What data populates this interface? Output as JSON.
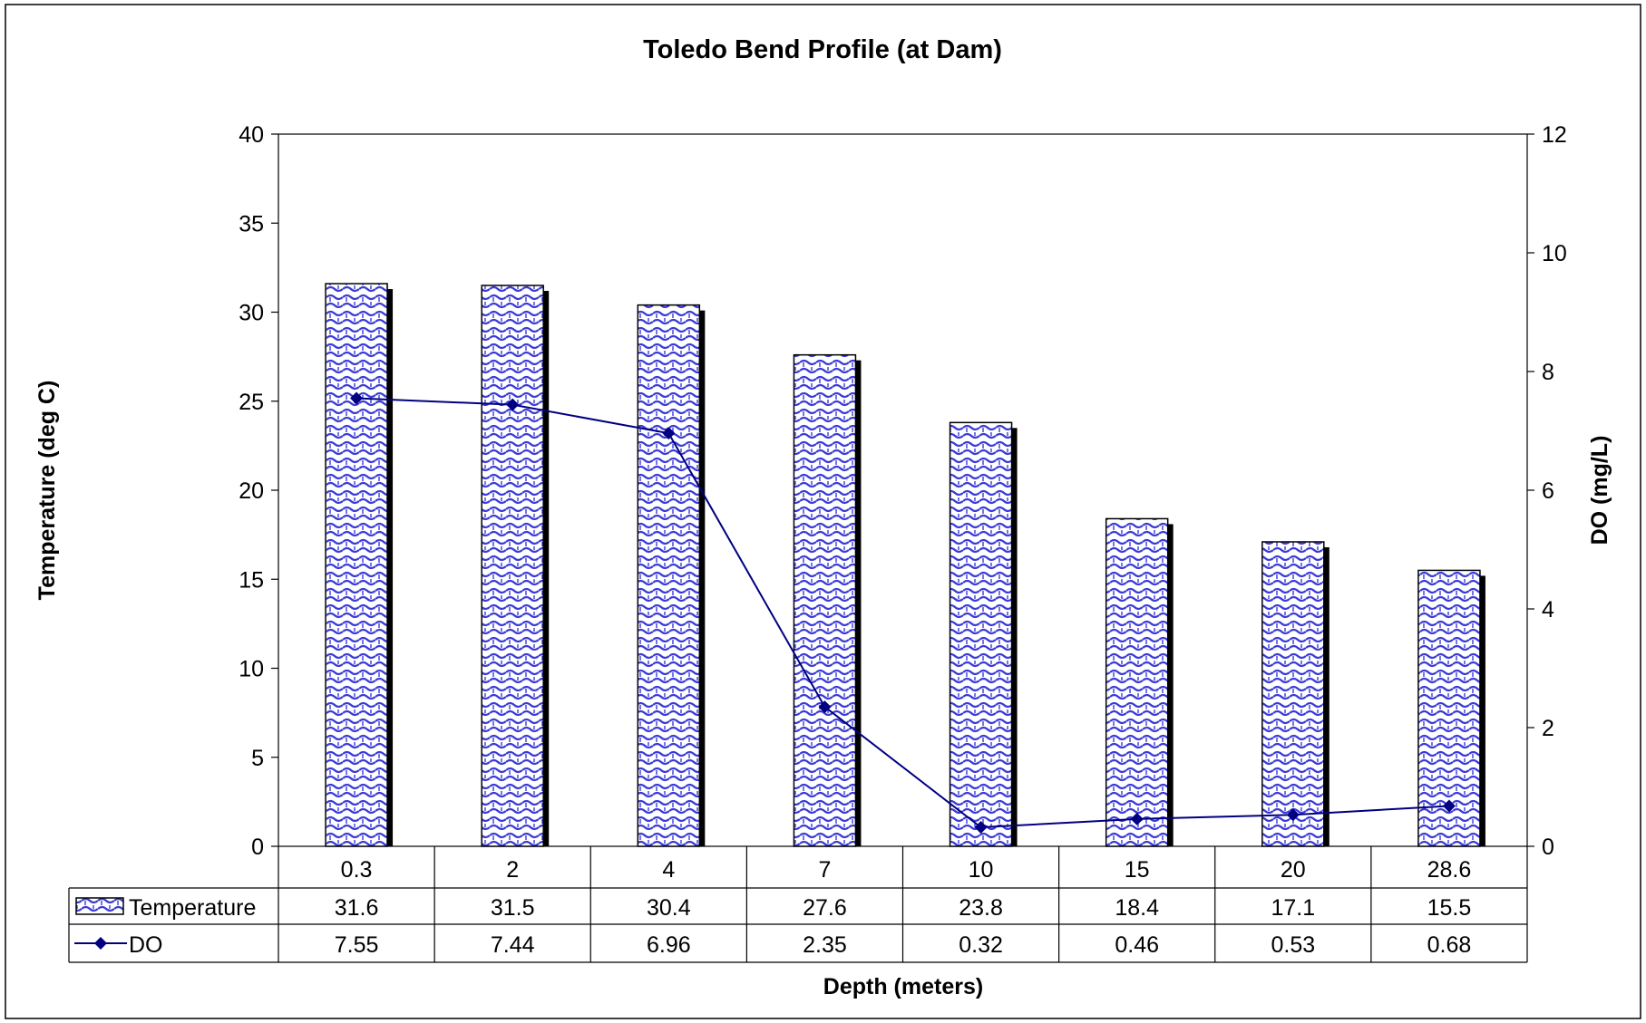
{
  "chart_data": {
    "type": "bar",
    "title": "Toledo Bend Profile (at Dam)",
    "xlabel": "Depth (meters)",
    "ylabel": "Temperature (deg C)",
    "y2label": "DO (mg/L)",
    "categories": [
      "0.3",
      "2",
      "4",
      "7",
      "10",
      "15",
      "20",
      "28.6"
    ],
    "ylim": [
      0,
      40
    ],
    "y_ticks": [
      "0",
      "5",
      "10",
      "15",
      "20",
      "25",
      "30",
      "35",
      "40"
    ],
    "y2lim": [
      0,
      12
    ],
    "y2_ticks": [
      "0",
      "2",
      "4",
      "6",
      "8",
      "10",
      "12"
    ],
    "grid": false,
    "data_table": true,
    "series": [
      {
        "name": "Temperature",
        "type": "bar",
        "axis": "left",
        "values": [
          31.6,
          31.5,
          30.4,
          27.6,
          23.8,
          18.4,
          17.1,
          15.5
        ],
        "labels": [
          "31.6",
          "31.5",
          "30.4",
          "27.6",
          "23.8",
          "18.4",
          "17.1",
          "15.5"
        ],
        "color": "#3333cc"
      },
      {
        "name": "DO",
        "type": "line",
        "axis": "right",
        "marker": "diamond",
        "values": [
          7.55,
          7.44,
          6.96,
          2.35,
          0.32,
          0.46,
          0.53,
          0.68
        ],
        "labels": [
          "7.55",
          "7.44",
          "6.96",
          "2.35",
          "0.32",
          "0.46",
          "0.53",
          "0.68"
        ],
        "color": "#000080"
      }
    ]
  }
}
